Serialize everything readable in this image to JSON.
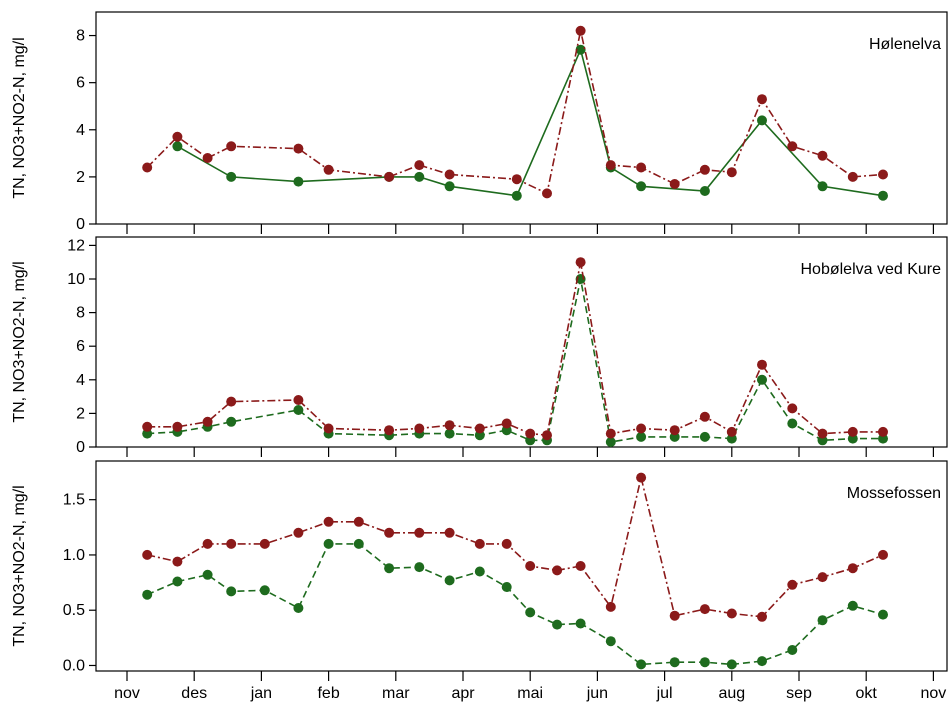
{
  "chart_data": {
    "type": "line",
    "x_tick_labels": [
      "nov",
      "des",
      "jan",
      "feb",
      "mar",
      "apr",
      "mai",
      "jun",
      "jul",
      "aug",
      "sep",
      "okt",
      "nov"
    ],
    "colors": {
      "TN": "#8b1a1a",
      "NO3+NO2-N": "#1e6b1e"
    },
    "panels": [
      {
        "title": "Hølenelva",
        "ylabel": "TN, NO3+NO2-N, mg/l",
        "ylim": [
          0,
          9.0
        ],
        "yticks": [
          0,
          2,
          4,
          6,
          8
        ],
        "ytick_labels": [
          "0",
          "2",
          "4",
          "6",
          "8"
        ],
        "series": [
          {
            "name": "TN",
            "style": "dashdot",
            "points": [
              [
                0.3,
                2.4
              ],
              [
                0.75,
                3.7
              ],
              [
                1.2,
                2.8
              ],
              [
                1.55,
                3.3
              ],
              [
                2.55,
                3.2
              ],
              [
                3.0,
                2.3
              ],
              [
                3.9,
                2.0
              ],
              [
                4.35,
                2.5
              ],
              [
                4.8,
                2.1
              ],
              [
                5.8,
                1.9
              ],
              [
                6.25,
                1.3
              ],
              [
                6.75,
                8.2
              ],
              [
                7.2,
                2.5
              ],
              [
                7.65,
                2.4
              ],
              [
                8.15,
                1.7
              ],
              [
                8.6,
                2.3
              ],
              [
                9.0,
                2.2
              ],
              [
                9.45,
                5.3
              ],
              [
                9.9,
                3.3
              ],
              [
                10.35,
                2.9
              ],
              [
                10.8,
                2.0
              ],
              [
                11.25,
                2.1
              ]
            ]
          },
          {
            "name": "NO3+NO2-N",
            "style": "solid",
            "points": [
              [
                0.75,
                3.3
              ],
              [
                1.55,
                2.0
              ],
              [
                2.55,
                1.8
              ],
              [
                3.9,
                2.0
              ],
              [
                4.35,
                2.0
              ],
              [
                4.8,
                1.6
              ],
              [
                5.8,
                1.2
              ],
              [
                6.75,
                7.4
              ],
              [
                7.2,
                2.4
              ],
              [
                7.65,
                1.6
              ],
              [
                8.6,
                1.4
              ],
              [
                9.45,
                4.4
              ],
              [
                10.35,
                1.6
              ],
              [
                11.25,
                1.2
              ]
            ]
          }
        ]
      },
      {
        "title": "Hobølelva ved Kure",
        "ylabel": "TN, NO3+NO2-N, mg/l",
        "ylim": [
          0,
          12.5
        ],
        "yticks": [
          0,
          2,
          4,
          6,
          8,
          10,
          12
        ],
        "ytick_labels": [
          "0",
          "2",
          "4",
          "6",
          "8",
          "10",
          "12"
        ],
        "series": [
          {
            "name": "TN",
            "style": "dashdot",
            "points": [
              [
                0.3,
                1.2
              ],
              [
                0.75,
                1.2
              ],
              [
                1.2,
                1.5
              ],
              [
                1.55,
                2.7
              ],
              [
                2.55,
                2.8
              ],
              [
                3.0,
                1.1
              ],
              [
                3.9,
                1.0
              ],
              [
                4.35,
                1.1
              ],
              [
                4.8,
                1.3
              ],
              [
                5.25,
                1.1
              ],
              [
                5.65,
                1.4
              ],
              [
                6.0,
                0.8
              ],
              [
                6.25,
                0.7
              ],
              [
                6.75,
                11.0
              ],
              [
                7.2,
                0.8
              ],
              [
                7.65,
                1.1
              ],
              [
                8.15,
                1.0
              ],
              [
                8.6,
                1.8
              ],
              [
                9.0,
                0.9
              ],
              [
                9.45,
                4.9
              ],
              [
                9.9,
                2.3
              ],
              [
                10.35,
                0.8
              ],
              [
                10.8,
                0.9
              ],
              [
                11.25,
                0.9
              ]
            ]
          },
          {
            "name": "NO3+NO2-N",
            "style": "dashed",
            "points": [
              [
                0.3,
                0.8
              ],
              [
                0.75,
                0.9
              ],
              [
                1.2,
                1.2
              ],
              [
                1.55,
                1.5
              ],
              [
                2.55,
                2.2
              ],
              [
                3.0,
                0.8
              ],
              [
                3.9,
                0.7
              ],
              [
                4.35,
                0.8
              ],
              [
                4.8,
                0.8
              ],
              [
                5.25,
                0.7
              ],
              [
                5.65,
                1.0
              ],
              [
                6.0,
                0.4
              ],
              [
                6.25,
                0.4
              ],
              [
                6.75,
                10.0
              ],
              [
                7.2,
                0.3
              ],
              [
                7.65,
                0.6
              ],
              [
                8.15,
                0.6
              ],
              [
                8.6,
                0.6
              ],
              [
                9.0,
                0.5
              ],
              [
                9.45,
                4.0
              ],
              [
                9.9,
                1.4
              ],
              [
                10.35,
                0.4
              ],
              [
                10.8,
                0.5
              ],
              [
                11.25,
                0.5
              ]
            ]
          }
        ]
      },
      {
        "title": "Mossefossen",
        "ylabel": "TN, NO3+NO2-N, mg/l",
        "ylim": [
          -0.05,
          1.85
        ],
        "yticks": [
          0,
          0.5,
          1.0,
          1.5
        ],
        "ytick_labels": [
          "0.0",
          "0.5",
          "1.0",
          "1.5"
        ],
        "series": [
          {
            "name": "TN",
            "style": "dashdot",
            "points": [
              [
                0.3,
                1.0
              ],
              [
                0.75,
                0.94
              ],
              [
                1.2,
                1.1
              ],
              [
                1.55,
                1.1
              ],
              [
                2.05,
                1.1
              ],
              [
                2.55,
                1.2
              ],
              [
                3.0,
                1.3
              ],
              [
                3.45,
                1.3
              ],
              [
                3.9,
                1.2
              ],
              [
                4.35,
                1.2
              ],
              [
                4.8,
                1.2
              ],
              [
                5.25,
                1.1
              ],
              [
                5.65,
                1.1
              ],
              [
                6.0,
                0.9
              ],
              [
                6.4,
                0.86
              ],
              [
                6.75,
                0.9
              ],
              [
                7.2,
                0.53
              ],
              [
                7.65,
                1.7
              ],
              [
                8.15,
                0.45
              ],
              [
                8.6,
                0.51
              ],
              [
                9.0,
                0.47
              ],
              [
                9.45,
                0.44
              ],
              [
                9.9,
                0.73
              ],
              [
                10.35,
                0.8
              ],
              [
                10.8,
                0.88
              ],
              [
                11.25,
                1.0
              ]
            ]
          },
          {
            "name": "NO3+NO2-N",
            "style": "dashed",
            "points": [
              [
                0.3,
                0.64
              ],
              [
                0.75,
                0.76
              ],
              [
                1.2,
                0.82
              ],
              [
                1.55,
                0.67
              ],
              [
                2.05,
                0.68
              ],
              [
                2.55,
                0.52
              ],
              [
                3.0,
                1.1
              ],
              [
                3.45,
                1.1
              ],
              [
                3.9,
                0.88
              ],
              [
                4.35,
                0.89
              ],
              [
                4.8,
                0.77
              ],
              [
                5.25,
                0.85
              ],
              [
                5.65,
                0.71
              ],
              [
                6.0,
                0.48
              ],
              [
                6.4,
                0.37
              ],
              [
                6.75,
                0.38
              ],
              [
                7.2,
                0.22
              ],
              [
                7.65,
                0.01
              ],
              [
                8.15,
                0.03
              ],
              [
                8.6,
                0.03
              ],
              [
                9.0,
                0.01
              ],
              [
                9.45,
                0.04
              ],
              [
                9.9,
                0.14
              ],
              [
                10.35,
                0.41
              ],
              [
                10.8,
                0.54
              ],
              [
                11.25,
                0.46
              ]
            ]
          }
        ]
      }
    ]
  }
}
